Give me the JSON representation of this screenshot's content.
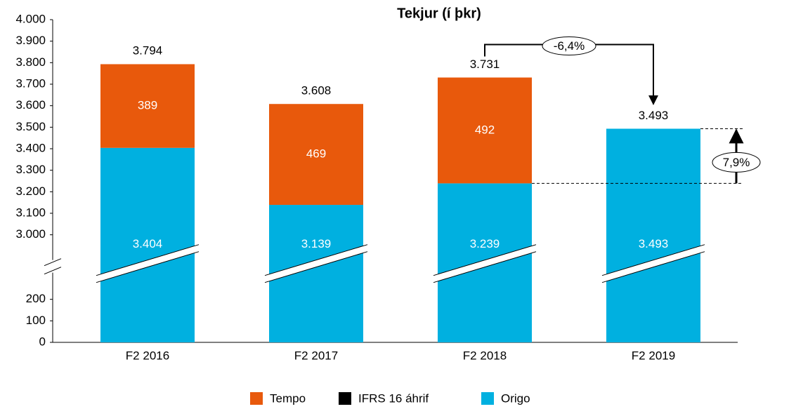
{
  "chart_data": {
    "type": "stacked_bar",
    "title": "Tekjur (í þkr)",
    "categories": [
      "F2 2016",
      "F2 2017",
      "F2 2018",
      "F2 2019"
    ],
    "series": [
      {
        "name": "Origo",
        "color": "#00b0e0",
        "values": [
          3404,
          3139,
          3239,
          3493
        ],
        "value_labels": [
          "3.404",
          "3.139",
          "3.239",
          "3.493"
        ]
      },
      {
        "name": "IFRS 16 áhrif",
        "color": "#000000",
        "values": [
          null,
          null,
          null,
          null
        ]
      },
      {
        "name": "Tempo",
        "color": "#e8590c",
        "values": [
          389,
          469,
          492,
          null
        ]
      }
    ],
    "legend_order": [
      "Tempo",
      "IFRS 16 áhrif",
      "Origo"
    ],
    "totals": [
      3794,
      3608,
      3731,
      3493
    ],
    "total_labels": [
      "3.794",
      "3.608",
      "3.731",
      "3.493"
    ],
    "annotations": [
      {
        "text": "-6,4%"
      },
      {
        "text": "7,9%"
      }
    ],
    "ylim": [
      0,
      4000
    ],
    "yticks": [
      0,
      100,
      200,
      {
        "value": 3000,
        "label": "3.000"
      },
      {
        "value": 3100,
        "label": "3.100"
      },
      {
        "value": 3200,
        "label": "3.200"
      },
      {
        "value": 3300,
        "label": "3.300"
      },
      {
        "value": 3400,
        "label": "3.400"
      },
      {
        "value": 3500,
        "label": "3.500"
      },
      {
        "value": 3600,
        "label": "3.600"
      },
      {
        "value": 3700,
        "label": "3.700"
      },
      {
        "value": 3800,
        "label": "3.800"
      },
      {
        "value": 3900,
        "label": "3.900"
      },
      {
        "value": 4000,
        "label": "4.000"
      }
    ],
    "axis_break": true,
    "grid": false,
    "legend": "bottom"
  }
}
